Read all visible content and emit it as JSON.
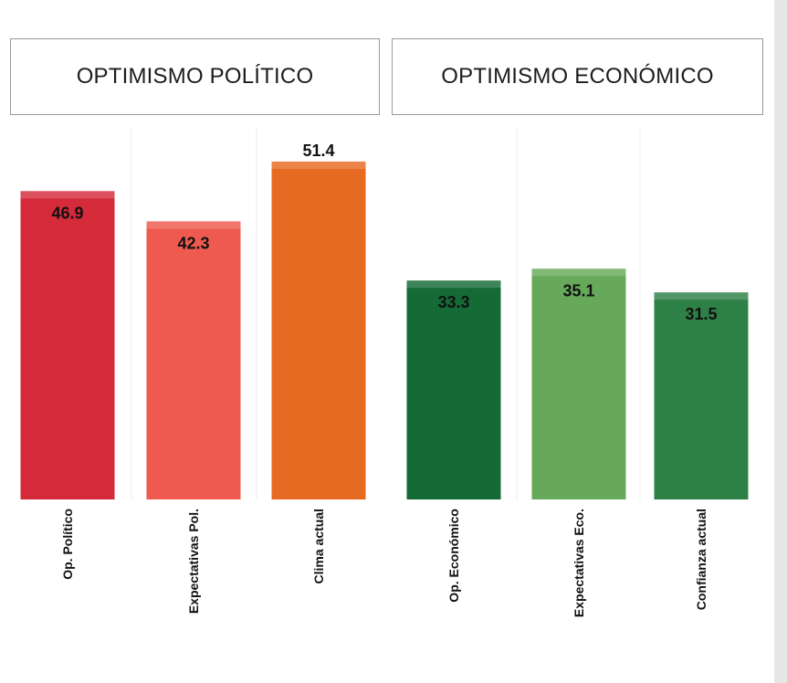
{
  "groups": [
    {
      "title": "OPTIMISMO POLÍTICO"
    },
    {
      "title": "OPTIMISMO ECONÓMICO"
    }
  ],
  "chart_data": {
    "type": "bar",
    "categories": [
      "Op. Político",
      "Expectativas Pol.",
      "Clima actual",
      "Op. Económico",
      "Expectativas Eco.",
      "Confianza actual"
    ],
    "values": [
      46.9,
      42.3,
      51.4,
      33.3,
      35.1,
      31.5
    ],
    "colors": [
      "#d42a3a",
      "#ee5a4f",
      "#e66a22",
      "#146b35",
      "#67a95a",
      "#2e8146"
    ],
    "groups": [
      {
        "title": "OPTIMISMO POLÍTICO",
        "categories": [
          "Op. Político",
          "Expectativas Pol.",
          "Clima actual"
        ]
      },
      {
        "title": "OPTIMISMO ECONÓMICO",
        "categories": [
          "Op. Económico",
          "Expectativas Eco.",
          "Confianza actual"
        ]
      }
    ],
    "title": "",
    "xlabel": "",
    "ylabel": "",
    "grid": false,
    "legend": "none"
  }
}
